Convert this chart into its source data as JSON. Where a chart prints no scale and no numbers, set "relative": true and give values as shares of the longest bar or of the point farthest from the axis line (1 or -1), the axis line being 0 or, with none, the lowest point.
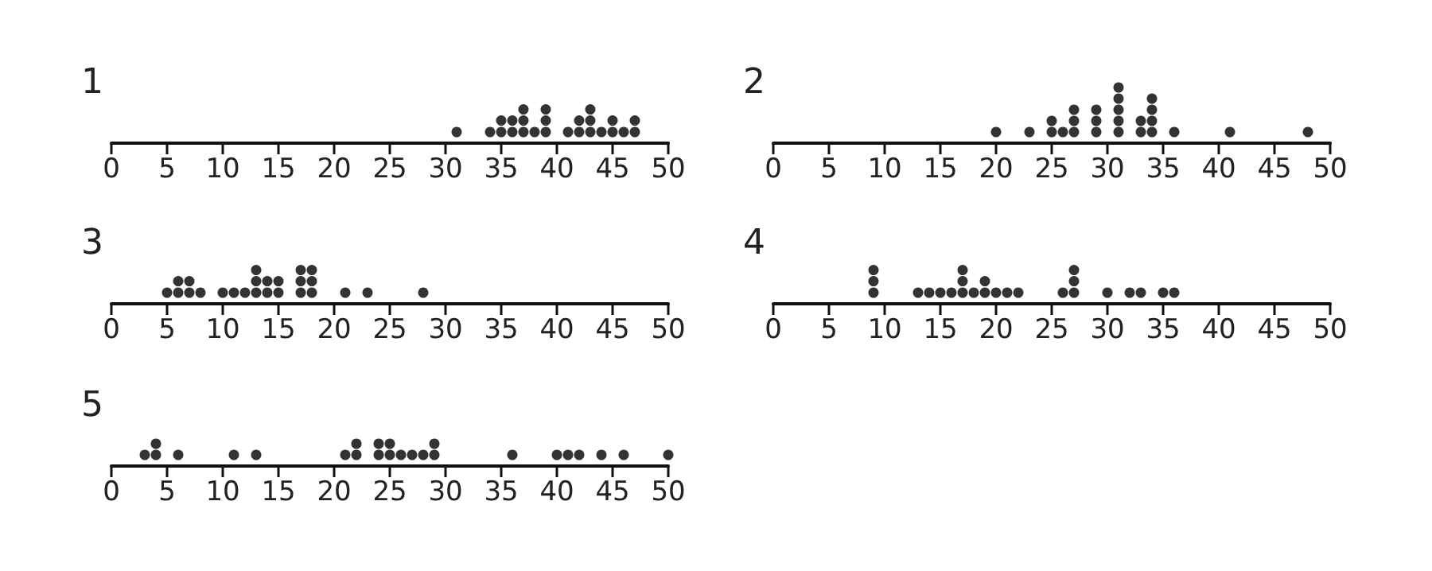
{
  "chart_data": [
    {
      "type": "scatter",
      "title": "1",
      "color": "#000000",
      "marker": "circle",
      "grid": false,
      "tick_labels": "x",
      "relative": true,
      "xlim": [
        0,
        50
      ],
      "xticks": [
        0,
        5,
        10,
        15,
        20,
        25,
        30,
        35,
        40,
        45,
        50
      ],
      "x": [
        31,
        34,
        35,
        35,
        36,
        36,
        37,
        37,
        37,
        38,
        39,
        39,
        39,
        41,
        42,
        42,
        43,
        43,
        43,
        44,
        45,
        45,
        46,
        47,
        47
      ],
      "values": [
        0.33,
        0.33,
        0.33,
        0.67,
        0.33,
        0.67,
        0.33,
        0.67,
        1,
        0.33,
        0.33,
        0.67,
        1,
        0.33,
        0.33,
        0.67,
        0.33,
        0.67,
        1,
        0.33,
        0.33,
        0.67,
        0.33,
        0.33,
        0.67
      ]
    },
    {
      "type": "scatter",
      "title": "2",
      "color": "#000000",
      "marker": "circle",
      "grid": false,
      "tick_labels": "x",
      "relative": true,
      "xlim": [
        0,
        50
      ],
      "xticks": [
        0,
        5,
        10,
        15,
        20,
        25,
        30,
        35,
        40,
        45,
        50
      ],
      "x": [
        20,
        23,
        25,
        25,
        26,
        27,
        27,
        27,
        29,
        29,
        29,
        31,
        31,
        31,
        31,
        31,
        33,
        33,
        34,
        34,
        34,
        34,
        36,
        41,
        48
      ],
      "values": [
        0.2,
        0.2,
        0.2,
        0.4,
        0.2,
        0.2,
        0.4,
        0.6,
        0.2,
        0.4,
        0.6,
        0.2,
        0.4,
        0.6,
        0.8,
        1,
        0.2,
        0.4,
        0.2,
        0.4,
        0.6,
        0.8,
        0.2,
        0.2,
        0.2
      ]
    },
    {
      "type": "scatter",
      "title": "3",
      "color": "#000000",
      "marker": "circle",
      "grid": false,
      "tick_labels": "x",
      "relative": true,
      "xlim": [
        0,
        50
      ],
      "xticks": [
        0,
        5,
        10,
        15,
        20,
        25,
        30,
        35,
        40,
        45,
        50
      ],
      "x": [
        5,
        6,
        6,
        7,
        7,
        8,
        10,
        11,
        12,
        13,
        13,
        13,
        14,
        14,
        15,
        15,
        17,
        17,
        17,
        18,
        18,
        18,
        21,
        23,
        28
      ],
      "values": [
        0.33,
        0.33,
        0.67,
        0.33,
        0.67,
        0.33,
        0.33,
        0.33,
        0.33,
        0.33,
        0.67,
        1,
        0.33,
        0.67,
        0.33,
        0.67,
        0.33,
        0.67,
        1,
        0.33,
        0.67,
        1,
        0.33,
        0.33,
        0.33
      ]
    },
    {
      "type": "scatter",
      "title": "4",
      "color": "#000000",
      "marker": "circle",
      "grid": false,
      "tick_labels": "x",
      "relative": true,
      "xlim": [
        0,
        50
      ],
      "xticks": [
        0,
        5,
        10,
        15,
        20,
        25,
        30,
        35,
        40,
        45,
        50
      ],
      "x": [
        9,
        9,
        9,
        13,
        14,
        15,
        16,
        17,
        17,
        17,
        18,
        19,
        19,
        20,
        21,
        22,
        26,
        27,
        27,
        27,
        30,
        32,
        33,
        35,
        36
      ],
      "values": [
        0.33,
        0.67,
        1,
        0.33,
        0.33,
        0.33,
        0.33,
        0.33,
        0.67,
        1,
        0.33,
        0.33,
        0.67,
        0.33,
        0.33,
        0.33,
        0.33,
        0.33,
        0.67,
        1,
        0.33,
        0.33,
        0.33,
        0.33,
        0.33
      ]
    },
    {
      "type": "scatter",
      "title": "5",
      "color": "#000000",
      "marker": "circle",
      "grid": false,
      "tick_labels": "x",
      "relative": true,
      "xlim": [
        0,
        50
      ],
      "xticks": [
        0,
        5,
        10,
        15,
        20,
        25,
        30,
        35,
        40,
        45,
        50
      ],
      "x": [
        3,
        4,
        4,
        6,
        11,
        13,
        21,
        22,
        22,
        24,
        24,
        25,
        25,
        26,
        27,
        28,
        29,
        29,
        36,
        40,
        41,
        42,
        44,
        46,
        50
      ],
      "values": [
        0.5,
        0.5,
        1,
        0.5,
        0.5,
        0.5,
        0.5,
        0.5,
        1,
        0.5,
        1,
        0.5,
        1,
        0.5,
        0.5,
        0.5,
        0.5,
        1,
        0.5,
        0.5,
        0.5,
        0.5,
        0.5,
        0.5,
        0.5
      ]
    }
  ]
}
